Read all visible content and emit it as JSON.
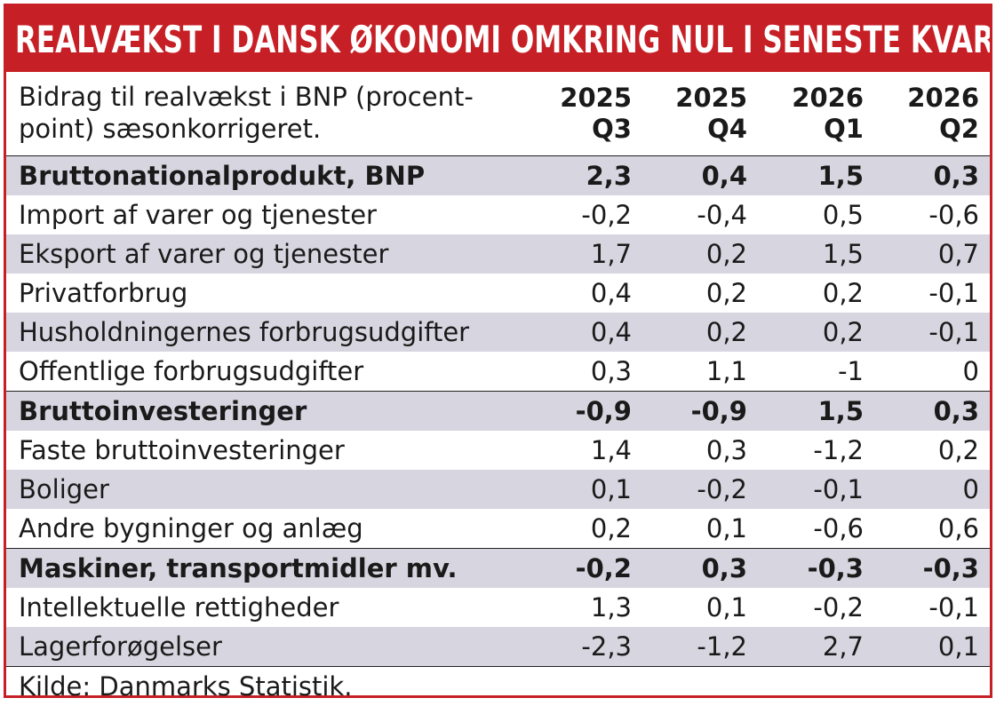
{
  "title": "REALVÆKST I DANSK ØKONOMI OMKRING NUL I SENESTE KVARTALER",
  "header": {
    "description_line1": "Bidrag til realvækst i BNP (procent-",
    "description_line2": "point) sæsonkorrigeret.",
    "columns": [
      {
        "year": "2025",
        "quarter": "Q3"
      },
      {
        "year": "2025",
        "quarter": "Q4"
      },
      {
        "year": "2026",
        "quarter": "Q1"
      },
      {
        "year": "2026",
        "quarter": "Q2"
      }
    ]
  },
  "footer": "Kilde: Danmarks Statistik.",
  "colors": {
    "accent": "#c62026",
    "row_shade": "#d7d6e0"
  },
  "chart_data": {
    "type": "table",
    "title": "REALVÆKST I DANSK ØKONOMI OMKRING NUL I SENESTE KVARTALER",
    "columns": [
      "2025 Q3",
      "2025 Q4",
      "2026 Q1",
      "2026 Q2"
    ],
    "rows": [
      {
        "label": "Bruttonationalprodukt, BNP",
        "values": [
          "2,3",
          "0,4",
          "1,5",
          "0,3"
        ],
        "bold": true
      },
      {
        "label": "Import af varer og tjenester",
        "values": [
          "-0,2",
          "-0,4",
          "0,5",
          "-0,6"
        ],
        "bold": false
      },
      {
        "label": "Eksport af varer og tjenester",
        "values": [
          "1,7",
          "0,2",
          "1,5",
          "0,7"
        ],
        "bold": false
      },
      {
        "label": "Privatforbrug",
        "values": [
          "0,4",
          "0,2",
          "0,2",
          "-0,1"
        ],
        "bold": false
      },
      {
        "label": "Husholdningernes forbrugsudgifter",
        "values": [
          "0,4",
          "0,2",
          "0,2",
          "-0,1"
        ],
        "bold": false
      },
      {
        "label": "Offentlige forbrugsudgifter",
        "values": [
          "0,3",
          "1,1",
          "-1",
          "0"
        ],
        "bold": false
      },
      {
        "label": "Bruttoinvesteringer",
        "values": [
          "-0,9",
          "-0,9",
          "1,5",
          "0,3"
        ],
        "bold": true
      },
      {
        "label": "Faste bruttoinvesteringer",
        "values": [
          "1,4",
          "0,3",
          "-1,2",
          "0,2"
        ],
        "bold": false
      },
      {
        "label": "Boliger",
        "values": [
          "0,1",
          "-0,2",
          "-0,1",
          "0"
        ],
        "bold": false
      },
      {
        "label": "Andre bygninger og anlæg",
        "values": [
          "0,2",
          "0,1",
          "-0,6",
          "0,6"
        ],
        "bold": false
      },
      {
        "label": "Maskiner, transportmidler mv.",
        "values": [
          "-0,2",
          "0,3",
          "-0,3",
          "-0,3"
        ],
        "bold": true
      },
      {
        "label": "Intellektuelle rettigheder",
        "values": [
          "1,3",
          "0,1",
          "-0,2",
          "-0,1"
        ],
        "bold": false
      },
      {
        "label": "Lagerforøgelser",
        "values": [
          "-2,3",
          "-1,2",
          "2,7",
          "0,1"
        ],
        "bold": false
      }
    ]
  }
}
